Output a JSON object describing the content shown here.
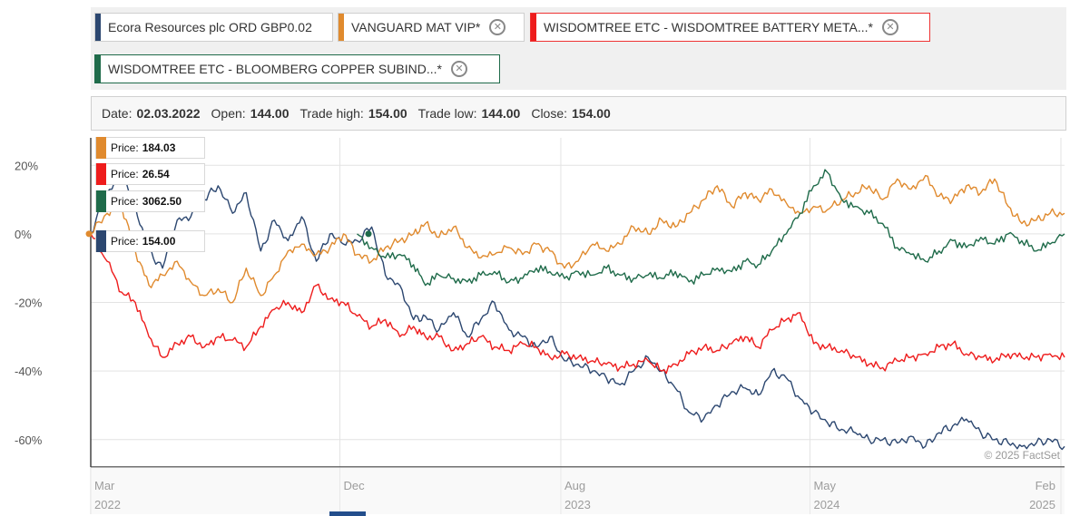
{
  "legend": {
    "chips": [
      {
        "label": "Ecora Resources plc ORD GBP0.02",
        "color": "#2c4770",
        "removable": false
      },
      {
        "label": "VANGUARD MAT VIP*",
        "color": "#e08a2e",
        "removable": true
      },
      {
        "label": "WISDOMTREE ETC - WISDOMTREE BATTERY META...*",
        "color": "#ee1c1c",
        "removable": true
      },
      {
        "label": "WISDOMTREE ETC - BLOOMBERG COPPER SUBIND...*",
        "color": "#1f6b4a",
        "removable": true
      }
    ],
    "close_symbol": "✕"
  },
  "infobar": {
    "date_label": "Date:",
    "date": "02.03.2022",
    "open_label": "Open:",
    "open": "144.00",
    "high_label": "Trade high:",
    "high": "154.00",
    "low_label": "Trade low:",
    "low": "144.00",
    "close_label": "Close:",
    "close": "154.00"
  },
  "tooltips": [
    {
      "label": "Price:",
      "value": "184.03",
      "color": "#e08a2e"
    },
    {
      "label": "Price:",
      "value": "26.54",
      "color": "#ee1c1c"
    },
    {
      "label": "Price:",
      "value": "3062.50",
      "color": "#1f6b4a"
    },
    {
      "label": "Price:",
      "value": "154.00",
      "color": "#2c4770"
    }
  ],
  "watermark": "© 2025 FactSet",
  "chart_data": {
    "type": "line",
    "ylabel": "",
    "ylim": [
      -68,
      28
    ],
    "y_ticks": [
      20,
      0,
      -20,
      -40,
      -60
    ],
    "y_tick_labels": [
      "20%",
      "0%",
      "-20%",
      "-40%",
      "-60%"
    ],
    "x_range": [
      "2022-03-02",
      "2025-02-05"
    ],
    "x_ticks": [
      {
        "date": "2022-03-01",
        "month": "Mar",
        "year": "2022"
      },
      {
        "date": "2022-12-01",
        "month": "Dec",
        "year": ""
      },
      {
        "date": "2023-08-01",
        "month": "Aug",
        "year": "2023"
      },
      {
        "date": "2024-05-01",
        "month": "May",
        "year": "2024"
      },
      {
        "date": "2025-02-01",
        "month": "Feb",
        "year": "2025"
      }
    ],
    "grid": true,
    "series": [
      {
        "name": "Ecora Resources plc ORD GBP0.02",
        "color": "#2c4770",
        "dates": [
          "2022-03-02",
          "2022-03-20",
          "2022-04-05",
          "2022-04-20",
          "2022-05-05",
          "2022-05-20",
          "2022-06-05",
          "2022-06-20",
          "2022-07-05",
          "2022-07-20",
          "2022-08-05",
          "2022-08-20",
          "2022-09-05",
          "2022-09-20",
          "2022-10-05",
          "2022-10-20",
          "2022-11-05",
          "2022-11-20",
          "2022-12-05",
          "2022-12-20",
          "2023-01-05",
          "2023-01-20",
          "2023-02-05",
          "2023-02-20",
          "2023-03-05",
          "2023-03-20",
          "2023-04-05",
          "2023-04-20",
          "2023-05-05",
          "2023-05-20",
          "2023-06-05",
          "2023-06-20",
          "2023-07-05",
          "2023-07-20",
          "2023-08-05",
          "2023-08-20",
          "2023-09-05",
          "2023-09-20",
          "2023-10-05",
          "2023-10-20",
          "2023-11-05",
          "2023-11-20",
          "2023-12-05",
          "2023-12-20",
          "2024-01-05",
          "2024-01-20",
          "2024-02-05",
          "2024-02-20",
          "2024-03-05",
          "2024-03-20",
          "2024-04-05",
          "2024-04-20",
          "2024-05-05",
          "2024-05-20",
          "2024-06-05",
          "2024-06-20",
          "2024-07-05",
          "2024-07-20",
          "2024-08-05",
          "2024-08-20",
          "2024-09-05",
          "2024-09-20",
          "2024-10-05",
          "2024-10-20",
          "2024-11-05",
          "2024-11-20",
          "2024-12-05",
          "2024-12-20",
          "2025-01-05",
          "2025-01-20",
          "2025-02-05"
        ],
        "values": [
          0,
          12,
          18,
          8,
          -5,
          -10,
          4,
          5,
          10,
          14,
          6,
          12,
          -5,
          4,
          -2,
          5,
          -8,
          0,
          -3,
          -2,
          2,
          -12,
          -15,
          -25,
          -24,
          -28,
          -23,
          -30,
          -25,
          -20,
          -28,
          -30,
          -33,
          -30,
          -37,
          -38,
          -40,
          -42,
          -44,
          -40,
          -36,
          -40,
          -45,
          -52,
          -54,
          -50,
          -46,
          -45,
          -47,
          -40,
          -42,
          -48,
          -52,
          -55,
          -57,
          -58,
          -60,
          -60,
          -61,
          -59,
          -62,
          -58,
          -56,
          -54,
          -58,
          -60,
          -61,
          -62,
          -61,
          -60,
          -62
        ]
      },
      {
        "name": "VANGUARD MAT VIP*",
        "color": "#e08a2e",
        "dates": [
          "2022-03-02",
          "2022-03-20",
          "2022-04-05",
          "2022-04-20",
          "2022-05-05",
          "2022-05-20",
          "2022-06-05",
          "2022-06-20",
          "2022-07-05",
          "2022-07-20",
          "2022-08-05",
          "2022-08-20",
          "2022-09-05",
          "2022-09-20",
          "2022-10-05",
          "2022-10-20",
          "2022-11-05",
          "2022-11-20",
          "2022-12-05",
          "2022-12-20",
          "2023-01-05",
          "2023-01-20",
          "2023-02-05",
          "2023-02-20",
          "2023-03-05",
          "2023-03-20",
          "2023-04-05",
          "2023-04-20",
          "2023-05-05",
          "2023-05-20",
          "2023-06-05",
          "2023-06-20",
          "2023-07-05",
          "2023-07-20",
          "2023-08-05",
          "2023-08-20",
          "2023-09-05",
          "2023-09-20",
          "2023-10-05",
          "2023-10-20",
          "2023-11-05",
          "2023-11-20",
          "2023-12-05",
          "2023-12-20",
          "2024-01-05",
          "2024-01-20",
          "2024-02-05",
          "2024-02-20",
          "2024-03-05",
          "2024-03-20",
          "2024-04-05",
          "2024-04-20",
          "2024-05-05",
          "2024-05-20",
          "2024-06-05",
          "2024-06-20",
          "2024-07-05",
          "2024-07-20",
          "2024-08-05",
          "2024-08-20",
          "2024-09-05",
          "2024-09-20",
          "2024-10-05",
          "2024-10-20",
          "2024-11-05",
          "2024-11-20",
          "2024-12-05",
          "2024-12-20",
          "2025-01-05",
          "2025-01-20",
          "2025-02-05"
        ],
        "values": [
          0,
          6,
          8,
          -5,
          -15,
          -12,
          -8,
          -14,
          -18,
          -16,
          -20,
          -10,
          -18,
          -12,
          -5,
          -3,
          -6,
          -4,
          0,
          -6,
          -8,
          -4,
          -2,
          0,
          3,
          -1,
          2,
          -4,
          -7,
          -6,
          -4,
          -6,
          -3,
          -5,
          -10,
          -8,
          -3,
          -5,
          -3,
          2,
          0,
          4,
          2,
          6,
          10,
          14,
          8,
          12,
          10,
          13,
          9,
          6,
          8,
          7,
          10,
          12,
          14,
          10,
          16,
          13,
          17,
          11,
          10,
          14,
          12,
          16,
          8,
          3,
          4,
          6,
          6
        ]
      },
      {
        "name": "WISDOMTREE ETC - WISDOMTREE BATTERY META...*",
        "color": "#ee1c1c",
        "dates": [
          "2022-03-02",
          "2022-03-20",
          "2022-04-05",
          "2022-04-20",
          "2022-05-05",
          "2022-05-20",
          "2022-06-05",
          "2022-06-20",
          "2022-07-05",
          "2022-07-20",
          "2022-08-05",
          "2022-08-20",
          "2022-09-05",
          "2022-09-20",
          "2022-10-05",
          "2022-10-20",
          "2022-11-05",
          "2022-11-20",
          "2022-12-05",
          "2022-12-20",
          "2023-01-05",
          "2023-01-20",
          "2023-02-05",
          "2023-02-20",
          "2023-03-05",
          "2023-03-20",
          "2023-04-05",
          "2023-04-20",
          "2023-05-05",
          "2023-05-20",
          "2023-06-05",
          "2023-06-20",
          "2023-07-05",
          "2023-07-20",
          "2023-08-05",
          "2023-08-20",
          "2023-09-05",
          "2023-09-20",
          "2023-10-05",
          "2023-10-20",
          "2023-11-05",
          "2023-11-20",
          "2023-12-05",
          "2023-12-20",
          "2024-01-05",
          "2024-01-20",
          "2024-02-05",
          "2024-02-20",
          "2024-03-05",
          "2024-03-20",
          "2024-04-05",
          "2024-04-20",
          "2024-05-05",
          "2024-05-20",
          "2024-06-05",
          "2024-06-20",
          "2024-07-05",
          "2024-07-20",
          "2024-08-05",
          "2024-08-20",
          "2024-09-05",
          "2024-09-20",
          "2024-10-05",
          "2024-10-20",
          "2024-11-05",
          "2024-11-20",
          "2024-12-05",
          "2024-12-20",
          "2025-01-05",
          "2025-01-20",
          "2025-02-05"
        ],
        "values": [
          0,
          -8,
          -17,
          -20,
          -30,
          -36,
          -32,
          -30,
          -33,
          -30,
          -31,
          -33,
          -27,
          -22,
          -20,
          -23,
          -15,
          -19,
          -20,
          -24,
          -27,
          -25,
          -30,
          -27,
          -30,
          -30,
          -34,
          -32,
          -30,
          -33,
          -34,
          -32,
          -33,
          -36,
          -35,
          -36,
          -37,
          -38,
          -39,
          -38,
          -37,
          -40,
          -38,
          -35,
          -33,
          -34,
          -32,
          -30,
          -33,
          -28,
          -25,
          -23,
          -32,
          -33,
          -34,
          -36,
          -38,
          -39,
          -37,
          -36,
          -35,
          -33,
          -32,
          -35,
          -36,
          -37,
          -35,
          -36,
          -36,
          -35,
          -36
        ]
      },
      {
        "name": "WISDOMTREE ETC - BLOOMBERG COPPER SUBIND...*",
        "color": "#1f6b4a",
        "dates": [
          "2022-12-20",
          "2023-01-05",
          "2023-01-20",
          "2023-02-05",
          "2023-02-20",
          "2023-03-05",
          "2023-03-20",
          "2023-04-05",
          "2023-04-20",
          "2023-05-05",
          "2023-05-20",
          "2023-06-05",
          "2023-06-20",
          "2023-07-05",
          "2023-07-20",
          "2023-08-05",
          "2023-08-20",
          "2023-09-05",
          "2023-09-20",
          "2023-10-05",
          "2023-10-20",
          "2023-11-05",
          "2023-11-20",
          "2023-12-05",
          "2023-12-20",
          "2024-01-05",
          "2024-01-20",
          "2024-02-05",
          "2024-02-20",
          "2024-03-05",
          "2024-03-20",
          "2024-04-05",
          "2024-04-20",
          "2024-05-05",
          "2024-05-20",
          "2024-06-05",
          "2024-06-20",
          "2024-07-05",
          "2024-07-20",
          "2024-08-05",
          "2024-08-20",
          "2024-09-05",
          "2024-09-20",
          "2024-10-05",
          "2024-10-20",
          "2024-11-05",
          "2024-11-20",
          "2024-12-05",
          "2024-12-20",
          "2025-01-05",
          "2025-01-20",
          "2025-02-05"
        ],
        "values": [
          0,
          -4,
          -7,
          -6,
          -9,
          -15,
          -12,
          -13,
          -14,
          -12,
          -11,
          -14,
          -13,
          -10,
          -11,
          -13,
          -11,
          -12,
          -10,
          -12,
          -13,
          -12,
          -13,
          -11,
          -14,
          -12,
          -10,
          -11,
          -8,
          -9,
          -5,
          0,
          6,
          14,
          18,
          10,
          8,
          6,
          3,
          -4,
          -6,
          -8,
          -5,
          -2,
          -4,
          -1,
          -3,
          0,
          -2,
          -5,
          -3,
          0
        ]
      }
    ]
  }
}
